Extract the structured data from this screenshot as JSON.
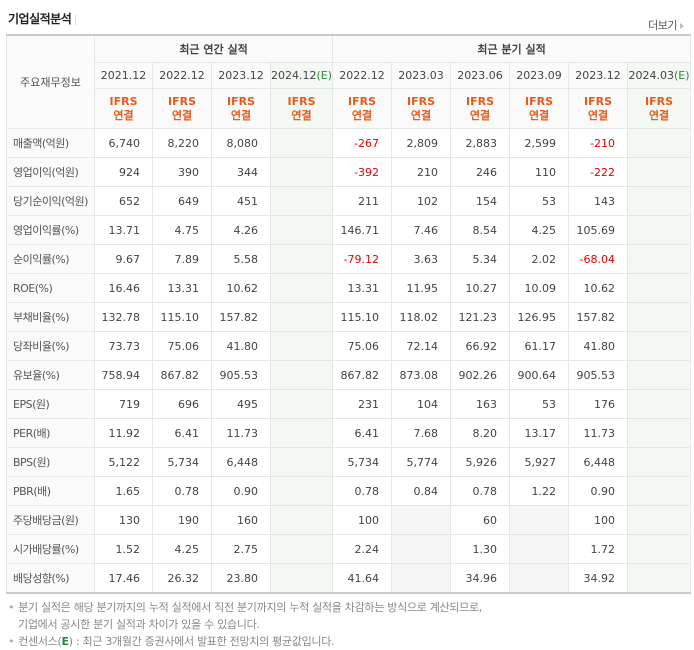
{
  "header": {
    "title": "기업실적분석",
    "more_label": "더보기"
  },
  "table": {
    "corner_label": "주요재무정보",
    "group_annual": "최근 연간 실적",
    "group_quarter": "최근 분기 실적",
    "annual_periods": [
      "2021.12",
      "2022.12",
      "2023.12",
      "2024.12"
    ],
    "annual_estimate_suffix": "(E)",
    "quarter_periods": [
      "2022.12",
      "2023.03",
      "2023.06",
      "2023.09",
      "2023.12",
      "2024.03"
    ],
    "quarter_estimate_suffix": "(E)",
    "basis_top": "IFRS",
    "basis_bottom": "연결",
    "colors": {
      "negative": "#e60000",
      "estimate_bg": "#f3f8f3",
      "ifrs": "#e8591c",
      "estimate_text": "#2a8a3e"
    },
    "rows": [
      {
        "label": "매출액(억원)",
        "annual": [
          "6,740",
          "8,220",
          "8,080",
          ""
        ],
        "quarter": [
          "-267",
          "2,809",
          "2,883",
          "2,599",
          "-210",
          ""
        ]
      },
      {
        "label": "영업이익(억원)",
        "annual": [
          "924",
          "390",
          "344",
          ""
        ],
        "quarter": [
          "-392",
          "210",
          "246",
          "110",
          "-222",
          ""
        ]
      },
      {
        "label": "당기순이익(억원)",
        "annual": [
          "652",
          "649",
          "451",
          ""
        ],
        "quarter": [
          "211",
          "102",
          "154",
          "53",
          "143",
          ""
        ]
      },
      {
        "label": "영업이익률(%)",
        "annual": [
          "13.71",
          "4.75",
          "4.26",
          ""
        ],
        "quarter": [
          "146.71",
          "7.46",
          "8.54",
          "4.25",
          "105.69",
          ""
        ]
      },
      {
        "label": "순이익률(%)",
        "annual": [
          "9.67",
          "7.89",
          "5.58",
          ""
        ],
        "quarter": [
          "-79.12",
          "3.63",
          "5.34",
          "2.02",
          "-68.04",
          ""
        ]
      },
      {
        "label": "ROE(%)",
        "annual": [
          "16.46",
          "13.31",
          "10.62",
          ""
        ],
        "quarter": [
          "13.31",
          "11.95",
          "10.27",
          "10.09",
          "10.62",
          ""
        ]
      },
      {
        "label": "부채비율(%)",
        "annual": [
          "132.78",
          "115.10",
          "157.82",
          ""
        ],
        "quarter": [
          "115.10",
          "118.02",
          "121.23",
          "126.95",
          "157.82",
          ""
        ]
      },
      {
        "label": "당좌비율(%)",
        "annual": [
          "73.73",
          "75.06",
          "41.80",
          ""
        ],
        "quarter": [
          "75.06",
          "72.14",
          "66.92",
          "61.17",
          "41.80",
          ""
        ]
      },
      {
        "label": "유보율(%)",
        "annual": [
          "758.94",
          "867.82",
          "905.53",
          ""
        ],
        "quarter": [
          "867.82",
          "873.08",
          "902.26",
          "900.64",
          "905.53",
          ""
        ]
      },
      {
        "label": "EPS(원)",
        "annual": [
          "719",
          "696",
          "495",
          ""
        ],
        "quarter": [
          "231",
          "104",
          "163",
          "53",
          "176",
          ""
        ]
      },
      {
        "label": "PER(배)",
        "annual": [
          "11.92",
          "6.41",
          "11.73",
          ""
        ],
        "quarter": [
          "6.41",
          "7.68",
          "8.20",
          "13.17",
          "11.73",
          ""
        ]
      },
      {
        "label": "BPS(원)",
        "annual": [
          "5,122",
          "5,734",
          "6,448",
          ""
        ],
        "quarter": [
          "5,734",
          "5,774",
          "5,926",
          "5,927",
          "6,448",
          ""
        ]
      },
      {
        "label": "PBR(배)",
        "annual": [
          "1.65",
          "0.78",
          "0.90",
          ""
        ],
        "quarter": [
          "0.78",
          "0.84",
          "0.78",
          "1.22",
          "0.90",
          ""
        ]
      },
      {
        "label": "주당배당금(원)",
        "annual": [
          "130",
          "190",
          "160",
          ""
        ],
        "quarter": [
          "100",
          "",
          "60",
          "",
          "100",
          ""
        ]
      },
      {
        "label": "시가배당률(%)",
        "annual": [
          "1.52",
          "4.25",
          "2.75",
          ""
        ],
        "quarter": [
          "2.24",
          "",
          "1.30",
          "",
          "1.72",
          ""
        ]
      },
      {
        "label": "배당성향(%)",
        "annual": [
          "17.46",
          "26.32",
          "23.80",
          ""
        ],
        "quarter": [
          "41.64",
          "",
          "34.96",
          "",
          "34.92",
          ""
        ]
      }
    ]
  },
  "notes": {
    "line1": "분기 실적은 해당 분기까지의 누적 실적에서 직전 분기까지의 누적 실적을 차감하는 방식으로 계산되므로,",
    "line2": "기업에서 공시한 분기 실적과 차이가 있을 수 있습니다.",
    "line3_prefix": "컨센서스(",
    "line3_e": "E",
    "line3_suffix": ") : 최근 3개월간 증권사에서 발표한 전망치의 평균값입니다."
  }
}
